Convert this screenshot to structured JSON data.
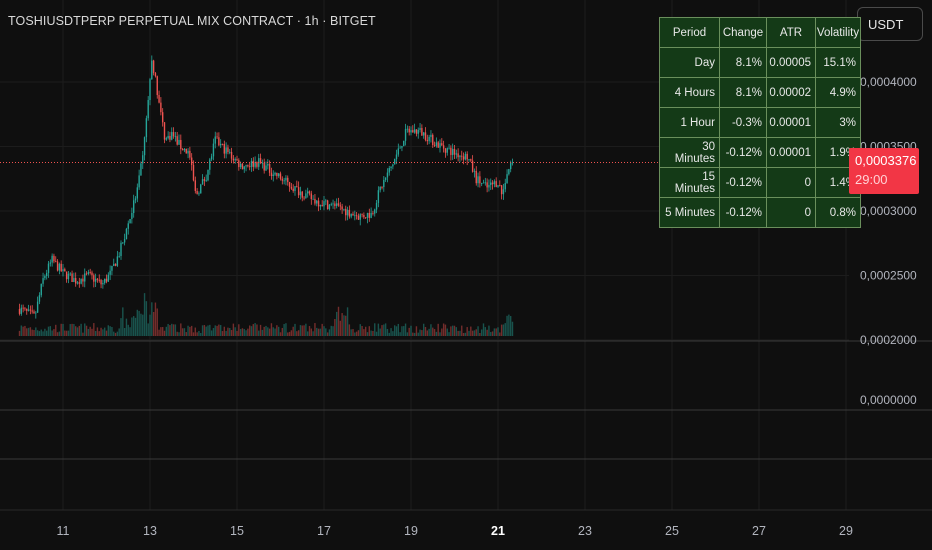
{
  "header": {
    "title": "TOSHIUSDTPERP PERPETUAL MIX CONTRACT · 1h · BITGET",
    "currency": "USDT"
  },
  "stats_table": {
    "headers": [
      "Period",
      "Change",
      "ATR",
      "Volatility"
    ],
    "rows": [
      [
        "Day",
        "8.1%",
        "0.00005",
        "15.1%"
      ],
      [
        "4 Hours",
        "8.1%",
        "0.00002",
        "4.9%"
      ],
      [
        "1 Hour",
        "-0.3%",
        "0.00001",
        "3%"
      ],
      [
        "30 Minutes",
        "-0.12%",
        "0.00001",
        "1.9%"
      ],
      [
        "15 Minutes",
        "-0.12%",
        "0",
        "1.4%"
      ],
      [
        "5 Minutes",
        "-0.12%",
        "0",
        "0.8%"
      ]
    ]
  },
  "price_badge": {
    "price": "0,0003376",
    "countdown": "29:00"
  },
  "colors": {
    "up": "#26a69a",
    "down": "#ef5350",
    "background": "#0f0f0f",
    "table_bg": "#143a17",
    "badge": "#f23645"
  },
  "chart_data": {
    "type": "candlestick",
    "timeframe": "1h",
    "price_axis": {
      "ticks": [
        {
          "label": "0,0004000",
          "value": 0.0004
        },
        {
          "label": "0,0003500",
          "value": 0.00035
        },
        {
          "label": "0,0003000",
          "value": 0.0003
        },
        {
          "label": "0,0002500",
          "value": 0.00025
        },
        {
          "label": "0,0002000",
          "value": 0.0002
        }
      ],
      "range": [
        0.000196,
        0.000438
      ]
    },
    "lower_pane_axis": {
      "ticks": [
        {
          "label": "0,0000000",
          "value": 0
        }
      ]
    },
    "time_axis": {
      "ticks": [
        {
          "label": "11",
          "day": 11
        },
        {
          "label": "13",
          "day": 13
        },
        {
          "label": "15",
          "day": 15
        },
        {
          "label": "17",
          "day": 17
        },
        {
          "label": "19",
          "day": 19
        },
        {
          "label": "21",
          "day": 21,
          "bold": true
        },
        {
          "label": "23",
          "day": 23
        },
        {
          "label": "25",
          "day": 25
        },
        {
          "label": "27",
          "day": 27
        },
        {
          "label": "29",
          "day": 29
        }
      ],
      "range": [
        10.0,
        30.4
      ]
    },
    "last_price": 0.0003376,
    "price_path": [
      [
        10.0,
        0.000224
      ],
      [
        10.35,
        0.000218
      ],
      [
        10.55,
        0.000248
      ],
      [
        10.75,
        0.000262
      ],
      [
        11.0,
        0.000252
      ],
      [
        11.3,
        0.000246
      ],
      [
        11.6,
        0.00025
      ],
      [
        11.9,
        0.000243
      ],
      [
        12.1,
        0.000252
      ],
      [
        12.3,
        0.000268
      ],
      [
        12.5,
        0.00029
      ],
      [
        12.7,
        0.000315
      ],
      [
        12.85,
        0.000345
      ],
      [
        12.95,
        0.000385
      ],
      [
        13.05,
        0.000418
      ],
      [
        13.2,
        0.000385
      ],
      [
        13.35,
        0.000355
      ],
      [
        13.5,
        0.00036
      ],
      [
        13.7,
        0.00035
      ],
      [
        13.9,
        0.000345
      ],
      [
        14.05,
        0.000312
      ],
      [
        14.3,
        0.000328
      ],
      [
        14.5,
        0.000355
      ],
      [
        14.8,
        0.000345
      ],
      [
        15.1,
        0.000335
      ],
      [
        15.5,
        0.000338
      ],
      [
        15.9,
        0.000328
      ],
      [
        16.3,
        0.000318
      ],
      [
        16.8,
        0.000308
      ],
      [
        17.3,
        0.000303
      ],
      [
        17.8,
        0.000296
      ],
      [
        18.1,
        0.000298
      ],
      [
        18.3,
        0.000318
      ],
      [
        18.6,
        0.000338
      ],
      [
        18.9,
        0.000362
      ],
      [
        19.2,
        0.000362
      ],
      [
        19.6,
        0.000352
      ],
      [
        20.0,
        0.000345
      ],
      [
        20.3,
        0.000342
      ],
      [
        20.5,
        0.000325
      ],
      [
        20.75,
        0.000318
      ],
      [
        21.0,
        0.000323
      ],
      [
        21.1,
        0.000312
      ],
      [
        21.2,
        0.00033
      ],
      [
        21.35,
        0.0003376
      ]
    ]
  }
}
